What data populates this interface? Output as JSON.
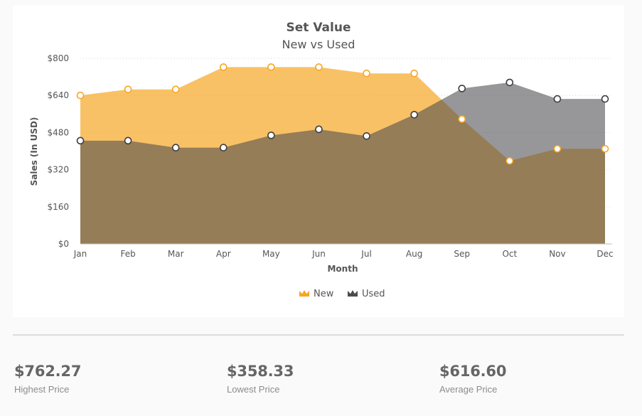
{
  "chart_data": {
    "type": "area",
    "title": "Set Value",
    "subtitle": "New vs Used",
    "xlabel": "Month",
    "ylabel": "Sales (In USD)",
    "categories": [
      "Jan",
      "Feb",
      "Mar",
      "Apr",
      "May",
      "Jun",
      "Jul",
      "Aug",
      "Sep",
      "Oct",
      "Nov",
      "Dec"
    ],
    "ylim": [
      0,
      800
    ],
    "y_ticks": [
      "$0",
      "$160",
      "$320",
      "$480",
      "$640",
      "$800"
    ],
    "y_tick_values": [
      0,
      160,
      320,
      480,
      640,
      800
    ],
    "grid": true,
    "legend_position": "bottom-center",
    "series": [
      {
        "name": "New",
        "color": "#f6a623",
        "values": [
          640,
          666,
          666,
          762,
          762,
          762,
          735,
          735,
          538,
          358,
          410,
          410
        ]
      },
      {
        "name": "Used",
        "color": "#4b4b50",
        "values": [
          445,
          445,
          415,
          415,
          468,
          494,
          465,
          557,
          670,
          696,
          625,
          625
        ]
      }
    ]
  },
  "stats": [
    {
      "value": "$762.27",
      "label": "Highest Price"
    },
    {
      "value": "$358.33",
      "label": "Lowest Price"
    },
    {
      "value": "$616.60",
      "label": "Average Price"
    }
  ]
}
